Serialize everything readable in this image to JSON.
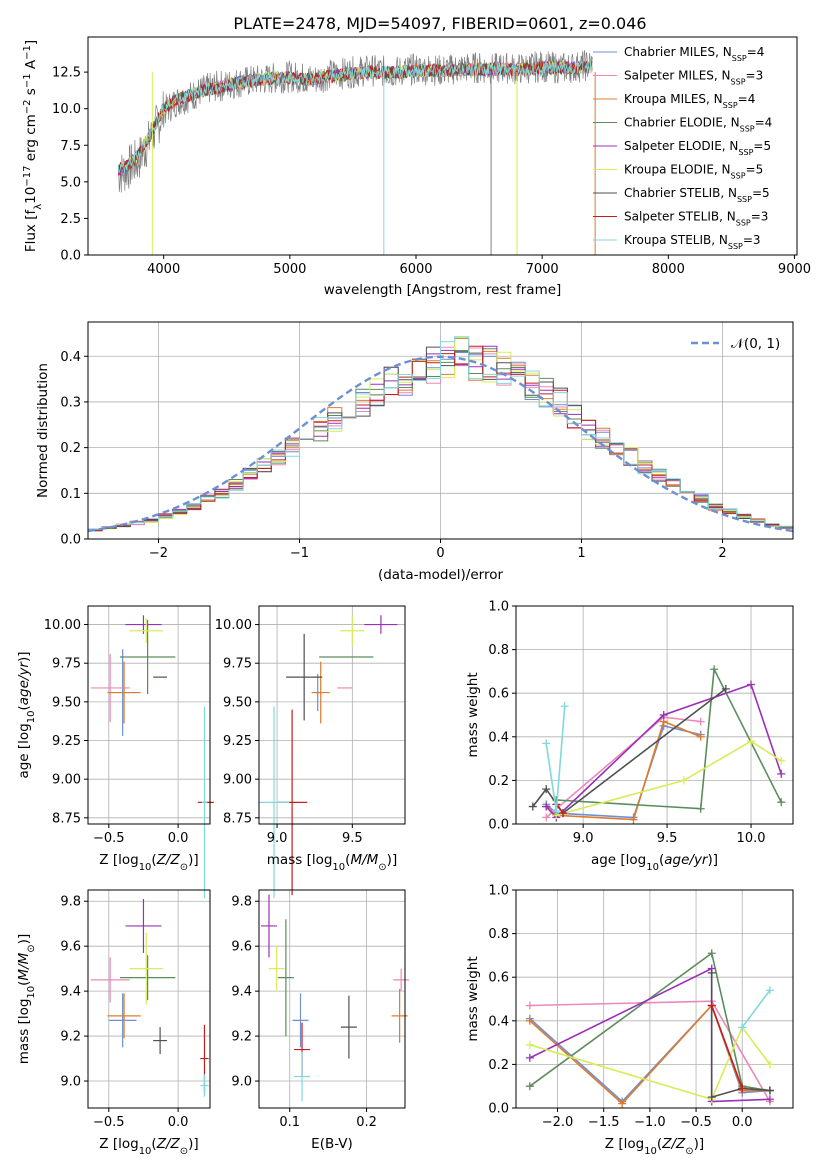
{
  "figure_title": "PLATE=2478, MJD=54097, FIBERID=0601, z=0.046",
  "colors": {
    "Chabrier MILES": "#6c8fd6",
    "Salpeter MILES": "#e98ab8",
    "Kroupa MILES": "#e07b2b",
    "Chabrier ELODIE": "#5c8c5c",
    "Salpeter ELODIE": "#9b30b8",
    "Kroupa ELODIE": "#d8ec58",
    "Chabrier STELIB": "#505050",
    "Salpeter STELIB": "#c02020",
    "Kroupa STELIB": "#80d8dc",
    "data": "#808080",
    "normal": "#6c8fd6"
  },
  "chart_data": [
    {
      "id": "spectrum",
      "type": "line",
      "xlabel": "wavelength [Angstrom, rest frame]",
      "ylabel": "Flux [f_λ10^-17 erg cm^-2 s^-1 A^-1]",
      "xlim": [
        3400,
        9020
      ],
      "ylim": [
        0,
        14.9
      ],
      "xticks": [
        4000,
        5000,
        6000,
        7000,
        8000,
        9000
      ],
      "yticks": [
        0.0,
        2.5,
        5.0,
        7.5,
        10.0,
        12.5
      ],
      "grid": false,
      "legend_position": "upper right",
      "legend": [
        {
          "name": "Chabrier MILES",
          "label": "Chabrier MILES, N",
          "sub": "SSP",
          "tail": "=4"
        },
        {
          "name": "Salpeter MILES",
          "label": "Salpeter MILES, N",
          "sub": "SSP",
          "tail": "=3"
        },
        {
          "name": "Kroupa MILES",
          "label": "Kroupa MILES, N",
          "sub": "SSP",
          "tail": "=4"
        },
        {
          "name": "Chabrier ELODIE",
          "label": "Chabrier ELODIE, N",
          "sub": "SSP",
          "tail": "=4"
        },
        {
          "name": "Salpeter ELODIE",
          "label": "Salpeter ELODIE, N",
          "sub": "SSP",
          "tail": "=5"
        },
        {
          "name": "Kroupa ELODIE",
          "label": "Kroupa ELODIE, N",
          "sub": "SSP",
          "tail": "=5"
        },
        {
          "name": "Chabrier STELIB",
          "label": "Chabrier STELIB, N",
          "sub": "SSP",
          "tail": "=5"
        },
        {
          "name": "Salpeter STELIB",
          "label": "Salpeter STELIB, N",
          "sub": "SSP",
          "tail": "=3"
        },
        {
          "name": "Kroupa STELIB",
          "label": "Kroupa STELIB, N",
          "sub": "SSP",
          "tail": "=3"
        }
      ],
      "data_x": [
        3640,
        3700,
        3800,
        3900,
        4000,
        4100,
        4200,
        4300,
        4400,
        4500,
        4600,
        4700,
        4800,
        4900,
        5000,
        5100,
        5200,
        5300,
        5400,
        5500,
        5600,
        5700,
        5800,
        5900,
        6000,
        6100,
        6200,
        6300,
        6400,
        6500,
        6600,
        6700,
        6800,
        6900,
        7000,
        7100,
        7200,
        7300,
        7400,
        7420
      ],
      "data_y": [
        5.5,
        5.8,
        6.5,
        8.0,
        9.8,
        10.5,
        10.8,
        11.2,
        11.5,
        11.6,
        11.8,
        11.9,
        12.0,
        12.1,
        12.2,
        12.1,
        12.0,
        12.3,
        12.4,
        12.5,
        12.6,
        12.6,
        12.5,
        12.6,
        12.7,
        12.7,
        12.6,
        12.7,
        12.8,
        12.8,
        12.7,
        12.8,
        12.7,
        12.8,
        12.9,
        12.8,
        12.8,
        12.9,
        13.0,
        0.0
      ],
      "model_y": [
        5.8,
        6.0,
        6.8,
        8.4,
        10.0,
        10.6,
        10.9,
        11.2,
        11.4,
        11.6,
        11.8,
        11.9,
        12.0,
        12.1,
        12.1,
        12.0,
        12.0,
        12.2,
        12.3,
        12.4,
        12.5,
        12.5,
        12.5,
        12.5,
        12.6,
        12.6,
        12.6,
        12.6,
        12.7,
        12.7,
        12.7,
        12.7,
        12.7,
        12.7,
        12.8,
        12.8,
        12.8,
        12.8,
        12.9,
        0.0
      ]
    },
    {
      "id": "residuals",
      "type": "area",
      "xlabel": "(data-model)/error",
      "ylabel": "Normed distribution",
      "xlim": [
        -2.5,
        2.5
      ],
      "ylim": [
        0,
        0.475
      ],
      "xticks": [
        -2,
        -1,
        0,
        1,
        2
      ],
      "yticks": [
        0.0,
        0.1,
        0.2,
        0.3,
        0.4
      ],
      "grid": true,
      "legend_position": "upper right",
      "legend": [
        "𝒩(0, 1)"
      ],
      "bin_width": 0.1,
      "bin_start": -2.5,
      "hist_values": [
        0.02,
        0.025,
        0.03,
        0.035,
        0.04,
        0.05,
        0.06,
        0.07,
        0.09,
        0.1,
        0.12,
        0.14,
        0.16,
        0.18,
        0.2,
        0.22,
        0.24,
        0.26,
        0.28,
        0.3,
        0.32,
        0.34,
        0.35,
        0.37,
        0.38,
        0.39,
        0.4,
        0.39,
        0.38,
        0.37,
        0.36,
        0.34,
        0.32,
        0.3,
        0.27,
        0.24,
        0.22,
        0.2,
        0.18,
        0.16,
        0.14,
        0.12,
        0.1,
        0.09,
        0.07,
        0.06,
        0.05,
        0.04,
        0.03,
        0.025
      ]
    },
    {
      "id": "age-vs-Z",
      "type": "scatter",
      "xlabel": "Z [log10(Z/Z⊙)]",
      "ylabel": "age [log10(age/yr)]",
      "xlim": [
        -0.65,
        0.23
      ],
      "ylim": [
        8.71,
        10.12
      ],
      "xticks": [
        -0.5,
        0.0
      ],
      "yticks": [
        8.75,
        9.0,
        9.25,
        9.5,
        9.75,
        10.0
      ],
      "grid": true,
      "points": [
        {
          "model": "Chabrier MILES",
          "x": -0.4,
          "y": 9.56,
          "xerr": 0.1,
          "yerr": 0.28
        },
        {
          "model": "Salpeter MILES",
          "x": -0.49,
          "y": 9.59,
          "xerr": 0.14,
          "yerr": 0.22
        },
        {
          "model": "Kroupa MILES",
          "x": -0.39,
          "y": 9.56,
          "xerr": 0.12,
          "yerr": 0.2
        },
        {
          "model": "Chabrier ELODIE",
          "x": -0.22,
          "y": 9.79,
          "xerr": 0.2,
          "yerr": 0.24
        },
        {
          "model": "Salpeter ELODIE",
          "x": -0.25,
          "y": 10.0,
          "xerr": 0.13,
          "yerr": 0.06
        },
        {
          "model": "Kroupa ELODIE",
          "x": -0.23,
          "y": 9.96,
          "xerr": 0.12,
          "yerr": 0.08
        },
        {
          "model": "Chabrier STELIB",
          "x": -0.13,
          "y": 9.66,
          "xerr": 0.05,
          "yerr": 0.0
        },
        {
          "model": "Salpeter STELIB",
          "x": 0.2,
          "y": 8.85,
          "xerr": 0.0,
          "yerr": 0.0
        },
        {
          "model": "Kroupa STELIB",
          "x": 0.19,
          "y": 8.85,
          "xerr": 0.02,
          "yerr": 0.62
        }
      ]
    },
    {
      "id": "age-vs-mass",
      "type": "scatter",
      "xlabel": "mass [log10(M/M⊙)]",
      "ylabel": "",
      "xlim": [
        8.88,
        9.85
      ],
      "ylim": [
        8.71,
        10.12
      ],
      "xticks": [
        9.0,
        9.5
      ],
      "yticks": [
        8.75,
        9.0,
        9.25,
        9.5,
        9.75,
        10.0
      ],
      "grid": true,
      "points": [
        {
          "model": "Chabrier MILES",
          "x": 9.27,
          "y": 9.56,
          "xerr": 0.02,
          "yerr": 0.12
        },
        {
          "model": "Salpeter MILES",
          "x": 9.45,
          "y": 9.59,
          "xerr": 0.05,
          "yerr": 0.0
        },
        {
          "model": "Kroupa MILES",
          "x": 9.29,
          "y": 9.56,
          "xerr": 0.06,
          "yerr": 0.2
        },
        {
          "model": "Chabrier ELODIE",
          "x": 9.46,
          "y": 9.79,
          "xerr": 0.18,
          "yerr": 0.0
        },
        {
          "model": "Salpeter ELODIE",
          "x": 9.69,
          "y": 10.0,
          "xerr": 0.11,
          "yerr": 0.06
        },
        {
          "model": "Kroupa ELODIE",
          "x": 9.5,
          "y": 9.96,
          "xerr": 0.08,
          "yerr": 0.1
        },
        {
          "model": "Chabrier STELIB",
          "x": 9.18,
          "y": 9.66,
          "xerr": 0.12,
          "yerr": 0.28
        },
        {
          "model": "Salpeter STELIB",
          "x": 9.1,
          "y": 8.85,
          "xerr": 0.1,
          "yerr": 0.6
        },
        {
          "model": "Kroupa STELIB",
          "x": 8.98,
          "y": 8.85,
          "xerr": 0.1,
          "yerr": 0.62
        }
      ]
    },
    {
      "id": "massweight-vs-age",
      "type": "line",
      "xlabel": "age [log10(age/yr)]",
      "ylabel": "mass weight",
      "xlim": [
        8.6,
        10.25
      ],
      "ylim": [
        0,
        1.0
      ],
      "xticks": [
        9.0,
        9.5,
        10.0
      ],
      "yticks": [
        0.0,
        0.2,
        0.4,
        0.6,
        0.8,
        1.0
      ],
      "grid": true,
      "series": [
        {
          "model": "Chabrier MILES",
          "x": [
            8.78,
            8.84,
            9.3,
            9.48,
            9.7
          ],
          "y": [
            0.09,
            0.05,
            0.03,
            0.45,
            0.41
          ]
        },
        {
          "model": "Salpeter MILES",
          "x": [
            8.78,
            9.48,
            9.7
          ],
          "y": [
            0.03,
            0.49,
            0.47
          ]
        },
        {
          "model": "Kroupa MILES",
          "x": [
            8.78,
            8.84,
            9.3,
            9.48,
            9.7
          ],
          "y": [
            0.08,
            0.04,
            0.02,
            0.47,
            0.4
          ]
        },
        {
          "model": "Chabrier ELODIE",
          "x": [
            8.84,
            9.7,
            9.78,
            10.18
          ],
          "y": [
            0.11,
            0.07,
            0.71,
            0.1
          ]
        },
        {
          "model": "Salpeter ELODIE",
          "x": [
            8.78,
            8.84,
            9.48,
            10.0,
            10.18
          ],
          "y": [
            0.08,
            0.03,
            0.5,
            0.64,
            0.23
          ]
        },
        {
          "model": "Kroupa ELODIE",
          "x": [
            8.84,
            9.6,
            10.0,
            10.18
          ],
          "y": [
            0.04,
            0.2,
            0.38,
            0.29
          ]
        },
        {
          "model": "Chabrier STELIB",
          "x": [
            8.7,
            8.78,
            8.88,
            9.85
          ],
          "y": [
            0.08,
            0.16,
            0.05,
            0.62
          ]
        },
        {
          "model": "Salpeter STELIB",
          "x": [
            8.84,
            8.88
          ],
          "y": [
            0.09,
            0.05
          ]
        },
        {
          "model": "Kroupa STELIB",
          "x": [
            8.78,
            8.84,
            8.89
          ],
          "y": [
            0.37,
            0.06,
            0.54
          ]
        }
      ]
    },
    {
      "id": "mass-vs-Z",
      "type": "scatter",
      "xlabel": "Z [log10(Z/Z⊙)]",
      "ylabel": "mass [log10(M/M⊙)]",
      "xlim": [
        -0.65,
        0.23
      ],
      "ylim": [
        8.88,
        9.85
      ],
      "xticks": [
        -0.5,
        0.0
      ],
      "yticks": [
        9.0,
        9.2,
        9.4,
        9.6,
        9.8
      ],
      "grid": true,
      "points": [
        {
          "model": "Chabrier MILES",
          "x": -0.4,
          "y": 9.27,
          "xerr": 0.1,
          "yerr": 0.12
        },
        {
          "model": "Salpeter MILES",
          "x": -0.49,
          "y": 9.45,
          "xerr": 0.14,
          "yerr": 0.1
        },
        {
          "model": "Kroupa MILES",
          "x": -0.39,
          "y": 9.29,
          "xerr": 0.12,
          "yerr": 0.1
        },
        {
          "model": "Chabrier ELODIE",
          "x": -0.22,
          "y": 9.46,
          "xerr": 0.2,
          "yerr": 0.1
        },
        {
          "model": "Salpeter ELODIE",
          "x": -0.25,
          "y": 9.69,
          "xerr": 0.13,
          "yerr": 0.12
        },
        {
          "model": "Kroupa ELODIE",
          "x": -0.23,
          "y": 9.5,
          "xerr": 0.12,
          "yerr": 0.16
        },
        {
          "model": "Chabrier STELIB",
          "x": -0.13,
          "y": 9.18,
          "xerr": 0.05,
          "yerr": 0.06
        },
        {
          "model": "Salpeter STELIB",
          "x": 0.19,
          "y": 9.1,
          "xerr": 0.03,
          "yerr": 0.15
        },
        {
          "model": "Kroupa STELIB",
          "x": 0.19,
          "y": 8.98,
          "xerr": 0.03,
          "yerr": 0.05
        }
      ]
    },
    {
      "id": "mass-vs-EBV",
      "type": "scatter",
      "xlabel": "E(B-V)",
      "ylabel": "",
      "xlim": [
        0.06,
        0.25
      ],
      "ylim": [
        8.88,
        9.85
      ],
      "xticks": [
        0.1,
        0.2
      ],
      "yticks": [
        9.0,
        9.2,
        9.4,
        9.6,
        9.8
      ],
      "grid": true,
      "points": [
        {
          "model": "Chabrier MILES",
          "x": 0.114,
          "y": 9.27,
          "xerr": 0.0,
          "yerr": 0.12
        },
        {
          "model": "Salpeter MILES",
          "x": 0.245,
          "y": 9.45,
          "xerr": 0.0,
          "yerr": 0.05
        },
        {
          "model": "Kroupa MILES",
          "x": 0.243,
          "y": 9.29,
          "xerr": 0.0,
          "yerr": 0.12
        },
        {
          "model": "Chabrier ELODIE",
          "x": 0.095,
          "y": 9.46,
          "xerr": 0.0,
          "yerr": 0.26
        },
        {
          "model": "Salpeter ELODIE",
          "x": 0.073,
          "y": 9.69,
          "xerr": 0.0,
          "yerr": 0.14
        },
        {
          "model": "Kroupa ELODIE",
          "x": 0.083,
          "y": 9.5,
          "xerr": 0.0,
          "yerr": 0.1
        },
        {
          "model": "Chabrier STELIB",
          "x": 0.177,
          "y": 9.24,
          "xerr": 0.0,
          "yerr": 0.14
        },
        {
          "model": "Salpeter STELIB",
          "x": 0.116,
          "y": 9.14,
          "xerr": 0.0,
          "yerr": 0.12
        },
        {
          "model": "Kroupa STELIB",
          "x": 0.116,
          "y": 9.02,
          "xerr": 0.0,
          "yerr": 0.11
        }
      ]
    },
    {
      "id": "massweight-vs-Z",
      "type": "line",
      "xlabel": "Z [log10(Z/Z⊙)]",
      "ylabel": "mass weight",
      "xlim": [
        -2.45,
        0.55
      ],
      "ylim": [
        0,
        1.0
      ],
      "xticks": [
        -2.0,
        -1.5,
        -1.0,
        -0.5,
        0.0
      ],
      "yticks": [
        0.0,
        0.2,
        0.4,
        0.6,
        0.8,
        1.0
      ],
      "grid": true,
      "series": [
        {
          "model": "Chabrier MILES",
          "x": [
            -2.3,
            -1.3,
            -0.33,
            0.0,
            0.3
          ],
          "y": [
            0.41,
            0.03,
            0.47,
            0.07,
            0.08
          ]
        },
        {
          "model": "Salpeter MILES",
          "x": [
            -2.3,
            -0.33,
            0.3
          ],
          "y": [
            0.47,
            0.49,
            0.03
          ]
        },
        {
          "model": "Kroupa MILES",
          "x": [
            -2.3,
            -1.3,
            -0.33,
            0.0,
            0.3
          ],
          "y": [
            0.4,
            0.02,
            0.47,
            0.08,
            0.08
          ]
        },
        {
          "model": "Chabrier ELODIE",
          "x": [
            -2.3,
            -0.33,
            0.0,
            0.3
          ],
          "y": [
            0.1,
            0.71,
            0.1,
            0.08
          ]
        },
        {
          "model": "Salpeter ELODIE",
          "x": [
            -2.3,
            -0.33,
            -0.33,
            0.3
          ],
          "y": [
            0.23,
            0.64,
            0.03,
            0.04
          ]
        },
        {
          "model": "Kroupa ELODIE",
          "x": [
            -2.3,
            -0.33,
            0.0,
            0.3
          ],
          "y": [
            0.29,
            0.04,
            0.37,
            0.2
          ]
        },
        {
          "model": "Chabrier STELIB",
          "x": [
            -0.33,
            -0.33,
            0.0,
            0.3
          ],
          "y": [
            0.62,
            0.05,
            0.09,
            0.08
          ]
        },
        {
          "model": "Salpeter STELIB",
          "x": [
            -0.33,
            0.0
          ],
          "y": [
            0.47,
            0.09
          ]
        },
        {
          "model": "Kroupa STELIB",
          "x": [
            0.0,
            0.3
          ],
          "y": [
            0.37,
            0.54
          ]
        }
      ]
    }
  ]
}
